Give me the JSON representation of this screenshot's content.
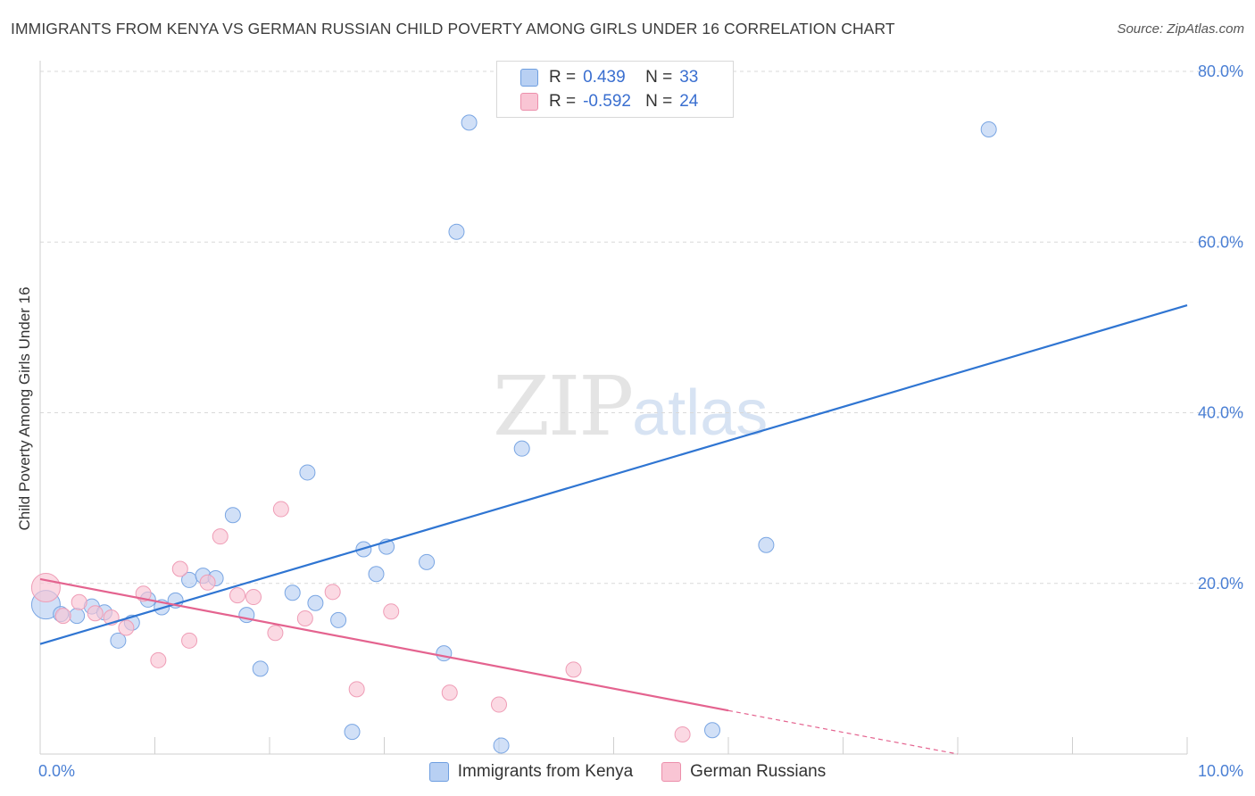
{
  "title": "IMMIGRANTS FROM KENYA VS GERMAN RUSSIAN CHILD POVERTY AMONG GIRLS UNDER 16 CORRELATION CHART",
  "source": "Source: ZipAtlas.com",
  "watermark": {
    "zip": "ZIP",
    "atlas": "atlas"
  },
  "legend_top": [
    {
      "r_label": "R =",
      "r_value": "0.439",
      "n_label": "N =",
      "n_value": "33",
      "fill": "#b8d0f3",
      "stroke": "#6e9ee0"
    },
    {
      "r_label": "R =",
      "r_value": "-0.592",
      "n_label": "N =",
      "n_value": "24",
      "fill": "#f9c5d4",
      "stroke": "#ec8fab"
    }
  ],
  "colors": {
    "blue_fill": "#b8d0f3",
    "blue_stroke": "#7aa6e3",
    "blue_line": "#2f75d2",
    "pink_fill": "#f9c5d4",
    "pink_stroke": "#ef9db6",
    "pink_line": "#e4638f",
    "grid": "#d9d9d9",
    "axis_text": "#4a7fd4"
  },
  "chart_data": {
    "type": "scatter",
    "title": "IMMIGRANTS FROM KENYA VS GERMAN RUSSIAN CHILD POVERTY AMONG GIRLS UNDER 16 CORRELATION CHART",
    "xlabel": "",
    "ylabel": "Child Poverty Among Girls Under 16",
    "xlim": [
      0,
      10
    ],
    "ylim": [
      0,
      80
    ],
    "x_tick_labels": [
      "0.0%",
      "10.0%"
    ],
    "y_ticks": [
      20,
      40,
      60,
      80
    ],
    "y_tick_labels": [
      "20.0%",
      "40.0%",
      "60.0%",
      "80.0%"
    ],
    "series": [
      {
        "name": "Immigrants from Kenya",
        "color": "blue",
        "points": [
          {
            "x": 0.05,
            "y": 17.5,
            "big": true
          },
          {
            "x": 0.18,
            "y": 16.4
          },
          {
            "x": 0.32,
            "y": 16.2
          },
          {
            "x": 0.45,
            "y": 17.3
          },
          {
            "x": 0.56,
            "y": 16.6
          },
          {
            "x": 0.68,
            "y": 13.3
          },
          {
            "x": 0.8,
            "y": 15.4
          },
          {
            "x": 0.94,
            "y": 18.1
          },
          {
            "x": 1.06,
            "y": 17.2
          },
          {
            "x": 1.18,
            "y": 18.0
          },
          {
            "x": 1.3,
            "y": 20.4
          },
          {
            "x": 1.42,
            "y": 20.9
          },
          {
            "x": 1.53,
            "y": 20.6
          },
          {
            "x": 1.68,
            "y": 28.0
          },
          {
            "x": 1.8,
            "y": 16.3
          },
          {
            "x": 1.92,
            "y": 10.0
          },
          {
            "x": 2.2,
            "y": 18.9
          },
          {
            "x": 2.33,
            "y": 33.0
          },
          {
            "x": 2.4,
            "y": 17.7
          },
          {
            "x": 2.6,
            "y": 15.7
          },
          {
            "x": 2.72,
            "y": 2.6
          },
          {
            "x": 2.82,
            "y": 24.0
          },
          {
            "x": 2.93,
            "y": 21.1
          },
          {
            "x": 3.02,
            "y": 24.3
          },
          {
            "x": 3.37,
            "y": 22.5
          },
          {
            "x": 3.52,
            "y": 11.8
          },
          {
            "x": 3.63,
            "y": 61.2
          },
          {
            "x": 3.74,
            "y": 74.0
          },
          {
            "x": 4.02,
            "y": 1.0
          },
          {
            "x": 4.2,
            "y": 35.8
          },
          {
            "x": 5.86,
            "y": 2.8
          },
          {
            "x": 6.33,
            "y": 24.5
          },
          {
            "x": 8.27,
            "y": 73.2
          }
        ]
      },
      {
        "name": "German Russians",
        "color": "pink",
        "points": [
          {
            "x": 0.05,
            "y": 19.5,
            "big": true
          },
          {
            "x": 0.2,
            "y": 16.2
          },
          {
            "x": 0.34,
            "y": 17.8
          },
          {
            "x": 0.48,
            "y": 16.5
          },
          {
            "x": 0.62,
            "y": 16.0
          },
          {
            "x": 0.75,
            "y": 14.8
          },
          {
            "x": 0.9,
            "y": 18.8
          },
          {
            "x": 1.03,
            "y": 11.0
          },
          {
            "x": 1.22,
            "y": 21.7
          },
          {
            "x": 1.3,
            "y": 13.3
          },
          {
            "x": 1.46,
            "y": 20.1
          },
          {
            "x": 1.57,
            "y": 25.5
          },
          {
            "x": 1.72,
            "y": 18.6
          },
          {
            "x": 1.86,
            "y": 18.4
          },
          {
            "x": 2.05,
            "y": 14.2
          },
          {
            "x": 2.1,
            "y": 28.7
          },
          {
            "x": 2.31,
            "y": 15.9
          },
          {
            "x": 2.55,
            "y": 19.0
          },
          {
            "x": 2.76,
            "y": 7.6
          },
          {
            "x": 3.06,
            "y": 16.7
          },
          {
            "x": 3.57,
            "y": 7.2
          },
          {
            "x": 4.0,
            "y": 5.8
          },
          {
            "x": 4.65,
            "y": 9.9
          },
          {
            "x": 5.6,
            "y": 2.3
          }
        ]
      }
    ],
    "trendlines": [
      {
        "series": "Immigrants from Kenya",
        "x": [
          0,
          10
        ],
        "y": [
          12.9,
          52.6
        ],
        "style": "solid"
      },
      {
        "series": "German Russians",
        "x": [
          0,
          6.0
        ],
        "y": [
          20.5,
          5.1
        ],
        "style": "solid"
      },
      {
        "series": "German Russians",
        "x": [
          6.0,
          8.0
        ],
        "y": [
          5.1,
          0
        ],
        "style": "dashed"
      }
    ]
  },
  "legend_bottom": [
    {
      "label": "Immigrants from Kenya",
      "fill": "#b8d0f3",
      "stroke": "#6e9ee0"
    },
    {
      "label": "German Russians",
      "fill": "#f9c5d4",
      "stroke": "#ec8fab"
    }
  ]
}
